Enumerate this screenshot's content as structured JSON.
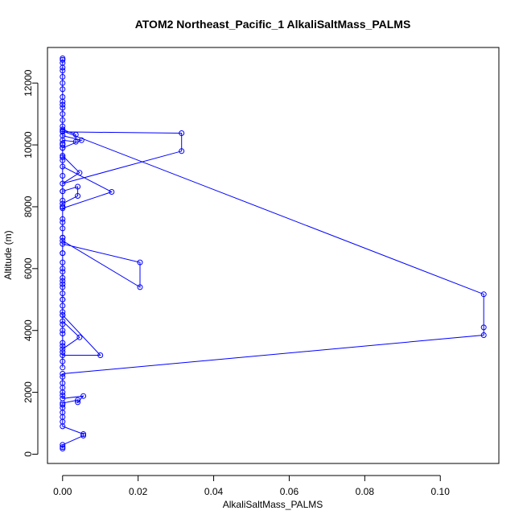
{
  "chart_data": {
    "type": "line",
    "title": "ATOM2 Northeast_Pacific_1 AlkaliSaltMass_PALMS",
    "xlabel": "AlkaliSaltMass_PALMS",
    "ylabel": "Altitude (m)",
    "xlim": [
      -0.004,
      0.1155
    ],
    "ylim": [
      -300,
      13150
    ],
    "xticks": [
      0.0,
      0.02,
      0.04,
      0.06,
      0.08,
      0.1
    ],
    "xtick_labels": [
      "0.00",
      "0.02",
      "0.04",
      "0.06",
      "0.08",
      "0.10"
    ],
    "yticks": [
      0,
      2000,
      4000,
      6000,
      8000,
      10000,
      12000
    ],
    "ytick_labels": [
      "0",
      "2000",
      "4000",
      "6000",
      "8000",
      "10000",
      "12000"
    ],
    "color": "#0000ff",
    "marker": "open-circle",
    "series": [
      {
        "points": [
          [
            0,
            180
          ],
          [
            0,
            230
          ],
          [
            0,
            300
          ],
          [
            0.0055,
            600
          ],
          [
            0.0055,
            650
          ],
          [
            0,
            900
          ],
          [
            0,
            1050
          ],
          [
            0,
            1200
          ],
          [
            0,
            1350
          ],
          [
            0,
            1500
          ],
          [
            0,
            1600
          ],
          [
            0,
            1650
          ],
          [
            0.004,
            1750
          ],
          [
            0.004,
            1680
          ],
          [
            0.0055,
            1880
          ],
          [
            0,
            1800
          ],
          [
            0,
            1900
          ],
          [
            0,
            2000
          ],
          [
            0,
            2150
          ],
          [
            0,
            2300
          ],
          [
            0,
            2500
          ],
          [
            0,
            2600
          ],
          [
            0.1115,
            3850
          ],
          [
            0.1115,
            4100
          ],
          [
            0.1115,
            5170
          ],
          [
            0,
            10450
          ],
          [
            0,
            10300
          ],
          [
            0.005,
            10150
          ],
          [
            0,
            9900
          ],
          [
            0,
            9650
          ],
          [
            0.0045,
            9100
          ],
          [
            0,
            8750
          ],
          [
            0.0315,
            9800
          ],
          [
            0.0315,
            10380
          ],
          [
            0,
            10420
          ],
          [
            0,
            10500
          ],
          [
            0.0035,
            10330
          ],
          [
            0.0035,
            10100
          ],
          [
            0,
            10150
          ],
          [
            0,
            10050
          ],
          [
            0,
            9900
          ],
          [
            0,
            9600
          ],
          [
            0,
            9300
          ],
          [
            0.013,
            8480
          ],
          [
            0,
            7950
          ],
          [
            0,
            8100
          ],
          [
            0.004,
            8350
          ],
          [
            0.004,
            8650
          ],
          [
            0,
            8500
          ],
          [
            0,
            8200
          ],
          [
            0,
            8000
          ],
          [
            0,
            7600
          ],
          [
            0,
            7300
          ],
          [
            0,
            7000
          ],
          [
            0,
            6900
          ],
          [
            0.0205,
            5400
          ],
          [
            0.0205,
            6200
          ],
          [
            0,
            6800
          ],
          [
            0,
            6500
          ],
          [
            0,
            6200
          ],
          [
            0,
            5900
          ],
          [
            0,
            5700
          ],
          [
            0,
            5600
          ],
          [
            0,
            5400
          ],
          [
            0,
            5200
          ],
          [
            0,
            5000
          ],
          [
            0,
            4800
          ],
          [
            0,
            4600
          ],
          [
            0,
            4300
          ],
          [
            0.0045,
            3780
          ],
          [
            0,
            3400
          ],
          [
            0,
            3200
          ],
          [
            0.01,
            3200
          ],
          [
            0,
            4500
          ],
          [
            0,
            4200
          ],
          [
            0,
            3900
          ],
          [
            0,
            3600
          ],
          [
            0,
            3300
          ],
          [
            0,
            3000
          ],
          [
            0,
            2800
          ],
          [
            0,
            3500
          ],
          [
            0,
            4000
          ],
          [
            0,
            4500
          ],
          [
            0,
            5000
          ],
          [
            0,
            5500
          ],
          [
            0,
            6000
          ],
          [
            0,
            6500
          ],
          [
            0,
            7000
          ],
          [
            0,
            7500
          ],
          [
            0,
            8000
          ],
          [
            0,
            8500
          ],
          [
            0,
            9000
          ],
          [
            0,
            9500
          ],
          [
            0,
            10000
          ],
          [
            0,
            10600
          ],
          [
            0,
            10800
          ],
          [
            0,
            11000
          ],
          [
            0,
            11200
          ],
          [
            0,
            11300
          ],
          [
            0,
            11400
          ],
          [
            0,
            11550
          ],
          [
            0,
            11800
          ],
          [
            0,
            12000
          ],
          [
            0,
            12200
          ],
          [
            0,
            12400
          ],
          [
            0,
            12500
          ],
          [
            0,
            12650
          ],
          [
            0,
            12750
          ],
          [
            0,
            12800
          ]
        ]
      }
    ]
  }
}
